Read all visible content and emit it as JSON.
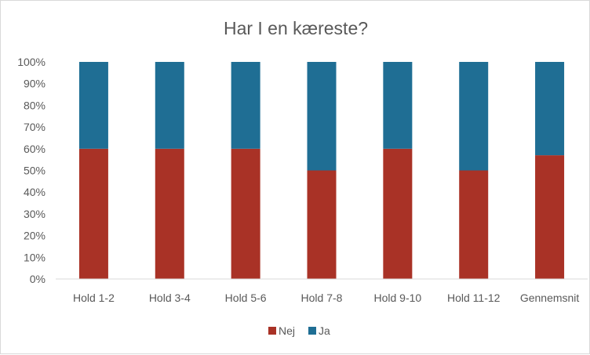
{
  "chart_data": {
    "type": "bar",
    "stacked": true,
    "stacking": "percent",
    "title": "Har I en kæreste?",
    "xlabel": "",
    "ylabel": "",
    "ylim": [
      0,
      100
    ],
    "y_ticks": [
      "0%",
      "10%",
      "20%",
      "30%",
      "40%",
      "50%",
      "60%",
      "70%",
      "80%",
      "90%",
      "100%"
    ],
    "categories": [
      "Hold 1-2",
      "Hold 3-4",
      "Hold 5-6",
      "Hold 7-8",
      "Hold 9-10",
      "Hold 11-12",
      "Gennemsnit"
    ],
    "series": [
      {
        "name": "Nej",
        "color": "#a93226",
        "values": [
          60,
          60,
          60,
          50,
          60,
          50,
          57
        ]
      },
      {
        "name": "Ja",
        "color": "#1f6e94",
        "values": [
          40,
          40,
          40,
          50,
          40,
          50,
          43
        ]
      }
    ],
    "grid": false,
    "legend_position": "bottom"
  }
}
